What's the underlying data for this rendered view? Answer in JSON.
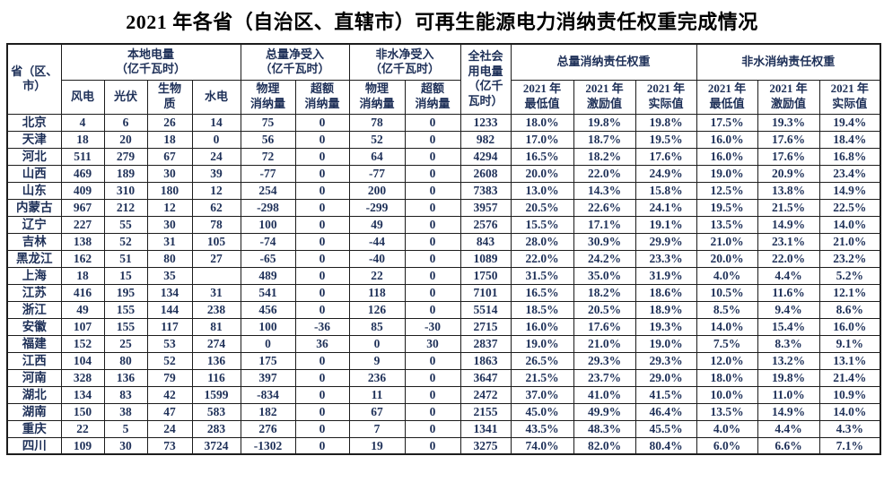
{
  "title": "2021 年各省（自治区、直辖市）可再生能源电力消纳责任权重完成情况",
  "table": {
    "province_header": "省（区、\n市）",
    "groups": [
      {
        "label": "本地电量\n（亿千瓦时）",
        "cols": [
          "风电",
          "光伏",
          "生物\n质",
          "水电"
        ]
      },
      {
        "label": "总量净受入\n（亿千瓦时）",
        "cols": [
          "物理\n消纳量",
          "超额\n消纳量"
        ]
      },
      {
        "label": "非水净受入\n（亿千瓦时）",
        "cols": [
          "物理\n消纳量",
          "超额\n消纳量"
        ]
      },
      {
        "label": "全社会\n用电量\n（亿千\n瓦时）"
      },
      {
        "label": "总量消纳责任权重",
        "cols": [
          "2021 年\n最低值",
          "2021 年\n激励值",
          "2021 年\n实际值"
        ]
      },
      {
        "label": "非水消纳责任权重",
        "cols": [
          "2021 年\n最低值",
          "2021 年\n激励值",
          "2021 年\n实际值"
        ]
      }
    ],
    "rows": [
      [
        "北京",
        "4",
        "6",
        "26",
        "14",
        "75",
        "0",
        "78",
        "0",
        "1233",
        "18.0%",
        "19.8%",
        "19.8%",
        "17.5%",
        "19.3%",
        "19.4%"
      ],
      [
        "天津",
        "18",
        "20",
        "18",
        "0",
        "56",
        "0",
        "52",
        "0",
        "982",
        "17.0%",
        "18.7%",
        "19.5%",
        "16.0%",
        "17.6%",
        "18.4%"
      ],
      [
        "河北",
        "511",
        "279",
        "67",
        "24",
        "72",
        "0",
        "64",
        "0",
        "4294",
        "16.5%",
        "18.2%",
        "17.6%",
        "16.0%",
        "17.6%",
        "16.8%"
      ],
      [
        "山西",
        "469",
        "189",
        "30",
        "39",
        "-77",
        "0",
        "-77",
        "0",
        "2608",
        "20.0%",
        "22.0%",
        "24.9%",
        "19.0%",
        "20.9%",
        "23.4%"
      ],
      [
        "山东",
        "409",
        "310",
        "180",
        "12",
        "254",
        "0",
        "200",
        "0",
        "7383",
        "13.0%",
        "14.3%",
        "15.8%",
        "12.5%",
        "13.8%",
        "14.9%"
      ],
      [
        "内蒙古",
        "967",
        "212",
        "12",
        "62",
        "-298",
        "0",
        "-299",
        "0",
        "3957",
        "20.5%",
        "22.6%",
        "24.1%",
        "19.5%",
        "21.5%",
        "22.5%"
      ],
      [
        "辽宁",
        "227",
        "55",
        "30",
        "78",
        "100",
        "0",
        "49",
        "0",
        "2576",
        "15.5%",
        "17.1%",
        "19.1%",
        "13.5%",
        "14.9%",
        "14.0%"
      ],
      [
        "吉林",
        "138",
        "52",
        "31",
        "105",
        "-74",
        "0",
        "-44",
        "0",
        "843",
        "28.0%",
        "30.9%",
        "29.9%",
        "21.0%",
        "23.1%",
        "21.0%"
      ],
      [
        "黑龙江",
        "162",
        "51",
        "80",
        "27",
        "-65",
        "0",
        "-40",
        "0",
        "1089",
        "22.0%",
        "24.2%",
        "23.3%",
        "20.0%",
        "22.0%",
        "23.2%"
      ],
      [
        "上海",
        "18",
        "15",
        "35",
        "",
        "489",
        "0",
        "22",
        "0",
        "1750",
        "31.5%",
        "35.0%",
        "31.9%",
        "4.0%",
        "4.4%",
        "5.2%"
      ],
      [
        "江苏",
        "416",
        "195",
        "134",
        "31",
        "541",
        "0",
        "118",
        "0",
        "7101",
        "16.5%",
        "18.2%",
        "18.6%",
        "10.5%",
        "11.6%",
        "12.1%"
      ],
      [
        "浙江",
        "49",
        "155",
        "144",
        "238",
        "456",
        "0",
        "126",
        "0",
        "5514",
        "18.5%",
        "20.5%",
        "18.9%",
        "8.5%",
        "9.4%",
        "8.6%"
      ],
      [
        "安徽",
        "107",
        "155",
        "117",
        "81",
        "100",
        "-36",
        "85",
        "-30",
        "2715",
        "16.0%",
        "17.6%",
        "19.3%",
        "14.0%",
        "15.4%",
        "16.0%"
      ],
      [
        "福建",
        "152",
        "25",
        "53",
        "274",
        "0",
        "36",
        "0",
        "30",
        "2837",
        "19.0%",
        "21.0%",
        "19.0%",
        "7.5%",
        "8.3%",
        "9.1%"
      ],
      [
        "江西",
        "104",
        "80",
        "52",
        "136",
        "175",
        "0",
        "9",
        "0",
        "1863",
        "26.5%",
        "29.3%",
        "29.3%",
        "12.0%",
        "13.2%",
        "13.1%"
      ],
      [
        "河南",
        "328",
        "136",
        "79",
        "116",
        "397",
        "0",
        "236",
        "0",
        "3647",
        "21.5%",
        "23.7%",
        "29.0%",
        "18.0%",
        "19.8%",
        "21.4%"
      ],
      [
        "湖北",
        "134",
        "83",
        "42",
        "1599",
        "-834",
        "0",
        "11",
        "0",
        "2472",
        "37.0%",
        "41.0%",
        "41.5%",
        "10.0%",
        "11.0%",
        "10.9%"
      ],
      [
        "湖南",
        "150",
        "38",
        "47",
        "583",
        "182",
        "0",
        "67",
        "0",
        "2155",
        "45.0%",
        "49.9%",
        "46.4%",
        "13.5%",
        "14.9%",
        "14.0%"
      ],
      [
        "重庆",
        "22",
        "5",
        "24",
        "283",
        "276",
        "0",
        "7",
        "0",
        "1341",
        "43.5%",
        "48.3%",
        "45.5%",
        "4.0%",
        "4.4%",
        "4.3%"
      ],
      [
        "四川",
        "109",
        "30",
        "73",
        "3724",
        "-1302",
        "0",
        "19",
        "0",
        "3275",
        "74.0%",
        "82.0%",
        "80.4%",
        "6.0%",
        "6.6%",
        "7.1%"
      ]
    ]
  }
}
